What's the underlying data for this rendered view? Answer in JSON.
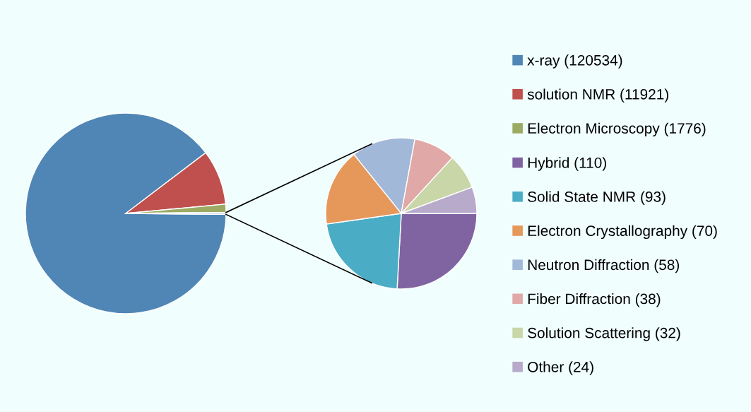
{
  "chart_data": [
    {
      "type": "pie",
      "categories": [
        "x-ray (120534)",
        "solution NMR (11921)",
        "Electron Microscopy (1776)",
        null
      ],
      "values": [
        120534,
        11921,
        1776,
        425
      ],
      "colors": [
        "#4f86b5",
        "#c0504d",
        "#9bab63",
        "#bcd4e6"
      ],
      "legend": "right"
    },
    {
      "type": "pie",
      "categories": [
        "Hybrid (110)",
        "Solid State NMR (93)",
        "Electron Crystallography (70)",
        "Neutron Diffraction (58)",
        "Fiber Diffraction (38)",
        "Solution Scattering (32)",
        "Other (24)"
      ],
      "values": [
        110,
        93,
        70,
        58,
        38,
        32,
        24
      ],
      "colors": [
        "#8064a2",
        "#4bacc6",
        "#e6975a",
        "#a2b8d8",
        "#e0a8a6",
        "#c8d6a8",
        "#b8aacb"
      ],
      "legend": "right"
    }
  ]
}
